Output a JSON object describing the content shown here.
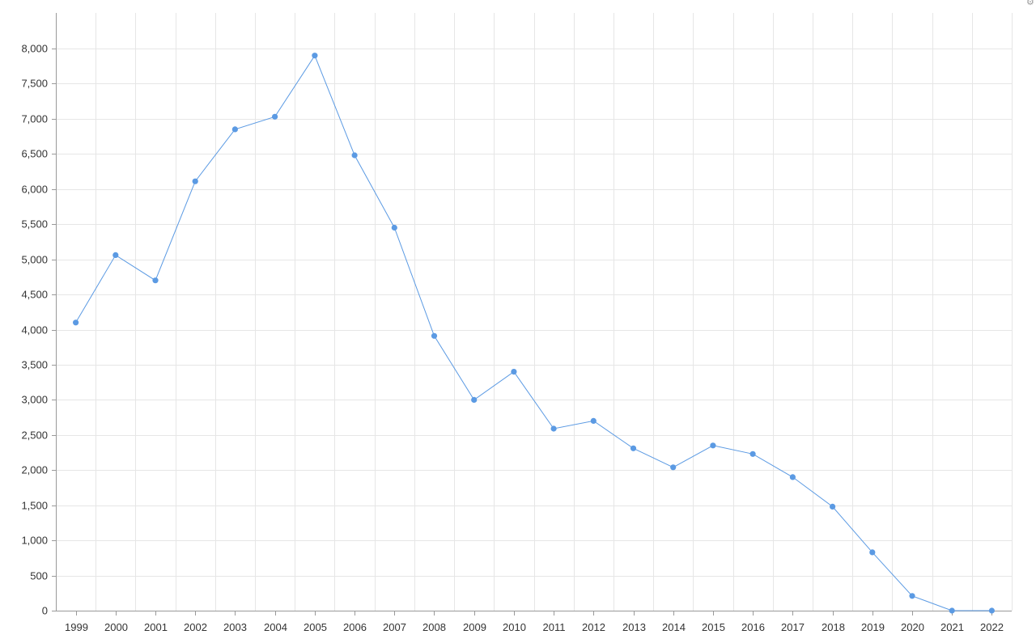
{
  "colors": {
    "series": "#5b9ae3",
    "grid": "#e6e6e6",
    "axis": "#999999",
    "text": "#333333"
  },
  "corner_icon": "settings-icon",
  "chart_data": {
    "type": "line",
    "title": "",
    "xlabel": "",
    "ylabel": "",
    "categories": [
      "1999",
      "2000",
      "2001",
      "2002",
      "2003",
      "2004",
      "2005",
      "2006",
      "2007",
      "2008",
      "2009",
      "2010",
      "2011",
      "2012",
      "2013",
      "2014",
      "2015",
      "2016",
      "2017",
      "2018",
      "2019",
      "2020",
      "2021",
      "2022"
    ],
    "series": [
      {
        "values": [
          4100,
          5060,
          4700,
          6110,
          6850,
          7030,
          7900,
          6480,
          5450,
          3910,
          3000,
          3400,
          2590,
          2700,
          2310,
          2040,
          2350,
          2230,
          1900,
          1480,
          830,
          210,
          0,
          0
        ]
      }
    ],
    "ylim": [
      0,
      8000
    ],
    "yticks": [
      0,
      500,
      1000,
      1500,
      2000,
      2500,
      3000,
      3500,
      4000,
      4500,
      5000,
      5500,
      6000,
      6500,
      7000,
      7500,
      8000
    ],
    "ytick_labels": [
      "0",
      "500",
      "1,000",
      "1,500",
      "2,000",
      "2,500",
      "3,000",
      "3,500",
      "4,000",
      "4,500",
      "5,000",
      "5,500",
      "6,000",
      "6,500",
      "7,000",
      "7,500",
      "8,000"
    ],
    "grid": true,
    "legend": "none"
  }
}
